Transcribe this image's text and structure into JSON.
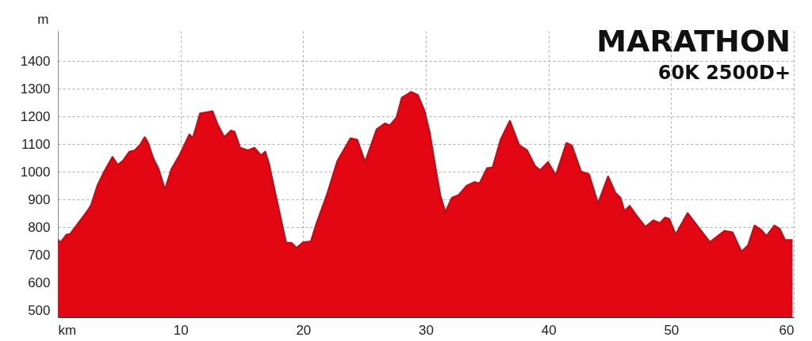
{
  "chart_data": {
    "type": "area",
    "title": "MARATHON",
    "subtitle": "60K 2500D+",
    "ylabel": "m",
    "x": [
      0,
      0.2,
      0.7,
      1.0,
      1.76,
      2.4,
      2.7,
      3.26,
      3.8,
      4.45,
      4.87,
      5.3,
      5.84,
      6.27,
      6.7,
      7.08,
      7.34,
      7.77,
      8.2,
      8.73,
      9.27,
      9.91,
      10.73,
      11.0,
      11.6,
      12.27,
      12.6,
      13.0,
      13.56,
      14.1,
      14.4,
      14.85,
      15.5,
      16.03,
      16.57,
      16.9,
      17.2,
      17.5,
      17.85,
      18.6,
      19.03,
      19.46,
      20.0,
      20.64,
      21.07,
      21.93,
      22.8,
      23.86,
      24.4,
      25.05,
      26.0,
      26.66,
      27.08,
      27.62,
      28.05,
      28.8,
      29.34,
      29.88,
      30.3,
      30.73,
      31.17,
      31.59,
      32.13,
      32.67,
      33.31,
      33.95,
      34.38,
      35.0,
      35.45,
      36.1,
      36.85,
      37.6,
      38.25,
      38.9,
      39.32,
      39.96,
      40.6,
      41.47,
      41.9,
      42.65,
      43.29,
      44.04,
      44.86,
      45.44,
      45.87,
      46.19,
      46.62,
      47.15,
      47.9,
      48.55,
      49.09,
      49.52,
      49.84,
      50.37,
      51.34,
      52.2,
      53.16,
      54.35,
      54.99,
      55.74,
      56.28,
      56.81,
      57.35,
      57.78,
      58.42,
      58.85,
      59.28,
      59.9
    ],
    "series": [
      {
        "color": "#e30613",
        "values": [
          756,
          744,
          773,
          775,
          820,
          858,
          878,
          954,
          1002,
          1054,
          1025,
          1040,
          1073,
          1078,
          1097,
          1125,
          1106,
          1049,
          1011,
          935,
          1011,
          1059,
          1135,
          1121,
          1211,
          1216,
          1219,
          1173,
          1125,
          1149,
          1145,
          1087,
          1078,
          1087,
          1059,
          1073,
          1030,
          968,
          897,
          744,
          744,
          725,
          745,
          749,
          811,
          916,
          1040,
          1121,
          1116,
          1035,
          1154,
          1175,
          1168,
          1197,
          1268,
          1289,
          1278,
          1221,
          1144,
          1030,
          916,
          854,
          906,
          916,
          949,
          963,
          958,
          1013,
          1016,
          1116,
          1184,
          1097,
          1078,
          1021,
          1006,
          1035,
          987,
          1104,
          1095,
          1001,
          992,
          885,
          983,
          925,
          906,
          858,
          877,
          844,
          801,
          825,
          815,
          835,
          830,
          773,
          851,
          801,
          746,
          787,
          782,
          711,
          735,
          806,
          790,
          768,
          806,
          794,
          754,
          754
        ]
      }
    ],
    "xlim": [
      0,
      60
    ],
    "xticks": [
      {
        "value": 0,
        "label": "km"
      },
      10,
      20,
      30,
      40,
      50,
      60
    ],
    "ylim": [
      475,
      1510
    ],
    "yticks": [
      500,
      600,
      700,
      800,
      900,
      1000,
      1100,
      1200,
      1300,
      1400
    ],
    "grid": true
  }
}
